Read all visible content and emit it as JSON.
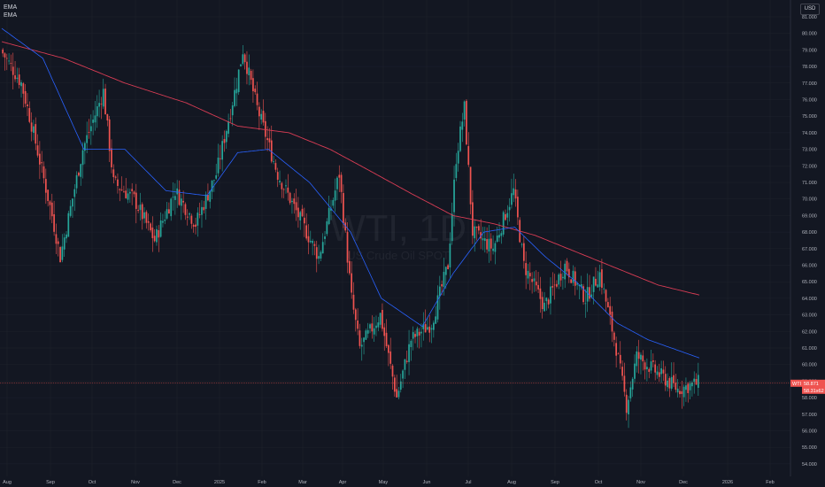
{
  "legend": {
    "indicators": [
      "EMA",
      "EMA"
    ]
  },
  "currency": "USD",
  "watermark": {
    "symbol": "WTI, 1D",
    "description": "US Crude Oil SPOT"
  },
  "price_label": {
    "symbol": "WTI",
    "price": "58.871",
    "subprice": "58.31x62"
  },
  "colors": {
    "background": "#131722",
    "up": "#26a69a",
    "down": "#ef5350",
    "ema_fast": "#2962ff",
    "ema_slow": "#d83c54",
    "grid": "#1e222d"
  },
  "chart_data": {
    "type": "candlestick",
    "y_axis": {
      "min": 54.0,
      "max": 81.0,
      "ticks": [
        "81.000",
        "80.000",
        "79.000",
        "78.000",
        "77.000",
        "76.000",
        "75.000",
        "74.000",
        "73.000",
        "72.000",
        "71.000",
        "70.000",
        "69.000",
        "68.000",
        "67.000",
        "66.000",
        "65.000",
        "64.000",
        "63.000",
        "62.000",
        "61.000",
        "60.000",
        "59.000",
        "58.000",
        "57.000",
        "56.000",
        "55.000",
        "54.000"
      ]
    },
    "x_axis": {
      "labels": [
        "Aug",
        "Sep",
        "Oct",
        "Nov",
        "Dec",
        "2025",
        "Feb",
        "Mar",
        "Apr",
        "May",
        "Jun",
        "Jul",
        "Aug",
        "Sep",
        "Oct",
        "Nov",
        "Dec",
        "2026",
        "Feb"
      ]
    },
    "price_path": {
      "bars": 340,
      "closes": [
        {
          "bar": 0,
          "price": 79.0
        },
        {
          "bar": 10,
          "price": 77.0
        },
        {
          "bar": 15,
          "price": 74.5
        },
        {
          "bar": 25,
          "price": 69.0
        },
        {
          "bar": 29,
          "price": 66.5
        },
        {
          "bar": 40,
          "price": 73.0
        },
        {
          "bar": 50,
          "price": 76.5
        },
        {
          "bar": 55,
          "price": 71.0
        },
        {
          "bar": 65,
          "price": 70.0
        },
        {
          "bar": 75,
          "price": 67.5
        },
        {
          "bar": 85,
          "price": 70.5
        },
        {
          "bar": 95,
          "price": 68.5
        },
        {
          "bar": 105,
          "price": 71.5
        },
        {
          "bar": 115,
          "price": 77.0
        },
        {
          "bar": 118,
          "price": 79.0
        },
        {
          "bar": 125,
          "price": 75.5
        },
        {
          "bar": 135,
          "price": 71.5
        },
        {
          "bar": 145,
          "price": 69.0
        },
        {
          "bar": 155,
          "price": 66.5
        },
        {
          "bar": 165,
          "price": 71.5
        },
        {
          "bar": 171,
          "price": 64.0
        },
        {
          "bar": 175,
          "price": 61.0
        },
        {
          "bar": 185,
          "price": 63.0
        },
        {
          "bar": 193,
          "price": 58.0
        },
        {
          "bar": 200,
          "price": 61.5
        },
        {
          "bar": 210,
          "price": 62.5
        },
        {
          "bar": 218,
          "price": 66.0
        },
        {
          "bar": 222,
          "price": 72.5
        },
        {
          "bar": 226,
          "price": 75.5
        },
        {
          "bar": 230,
          "price": 68.0
        },
        {
          "bar": 240,
          "price": 67.0
        },
        {
          "bar": 250,
          "price": 70.5
        },
        {
          "bar": 255,
          "price": 66.0
        },
        {
          "bar": 265,
          "price": 63.5
        },
        {
          "bar": 275,
          "price": 66.0
        },
        {
          "bar": 285,
          "price": 64.0
        },
        {
          "bar": 292,
          "price": 65.5
        },
        {
          "bar": 300,
          "price": 61.0
        },
        {
          "bar": 305,
          "price": 57.5
        },
        {
          "bar": 310,
          "price": 60.5
        },
        {
          "bar": 320,
          "price": 59.5
        },
        {
          "bar": 330,
          "price": 58.5
        },
        {
          "bar": 340,
          "price": 58.9
        }
      ]
    },
    "ema_fast": [
      {
        "bar": 0,
        "price": 80.3
      },
      {
        "bar": 20,
        "price": 78.5
      },
      {
        "bar": 40,
        "price": 73.0
      },
      {
        "bar": 60,
        "price": 73.0
      },
      {
        "bar": 80,
        "price": 70.5
      },
      {
        "bar": 100,
        "price": 70.2
      },
      {
        "bar": 115,
        "price": 72.8
      },
      {
        "bar": 130,
        "price": 73.0
      },
      {
        "bar": 150,
        "price": 71.0
      },
      {
        "bar": 170,
        "price": 68.0
      },
      {
        "bar": 185,
        "price": 64.0
      },
      {
        "bar": 205,
        "price": 62.3
      },
      {
        "bar": 220,
        "price": 65.5
      },
      {
        "bar": 235,
        "price": 68.0
      },
      {
        "bar": 250,
        "price": 68.3
      },
      {
        "bar": 265,
        "price": 66.5
      },
      {
        "bar": 280,
        "price": 65.0
      },
      {
        "bar": 300,
        "price": 62.5
      },
      {
        "bar": 315,
        "price": 61.5
      },
      {
        "bar": 340,
        "price": 60.4
      }
    ],
    "ema_slow": [
      {
        "bar": 0,
        "price": 79.5
      },
      {
        "bar": 30,
        "price": 78.5
      },
      {
        "bar": 60,
        "price": 77.0
      },
      {
        "bar": 90,
        "price": 75.8
      },
      {
        "bar": 115,
        "price": 74.4
      },
      {
        "bar": 140,
        "price": 74.0
      },
      {
        "bar": 160,
        "price": 73.0
      },
      {
        "bar": 175,
        "price": 72.0
      },
      {
        "bar": 200,
        "price": 70.3
      },
      {
        "bar": 220,
        "price": 69.0
      },
      {
        "bar": 240,
        "price": 68.5
      },
      {
        "bar": 260,
        "price": 67.8
      },
      {
        "bar": 280,
        "price": 66.8
      },
      {
        "bar": 300,
        "price": 65.8
      },
      {
        "bar": 320,
        "price": 64.8
      },
      {
        "bar": 340,
        "price": 64.2
      }
    ],
    "current_price": 58.871
  }
}
